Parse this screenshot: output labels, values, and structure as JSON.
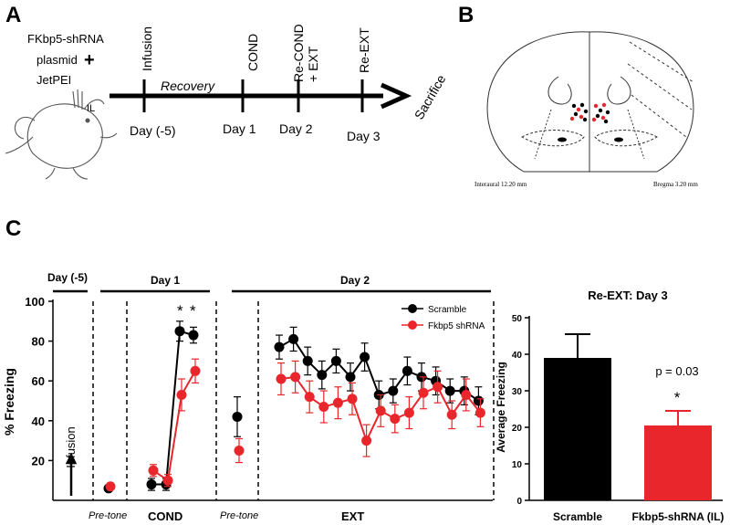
{
  "panels": {
    "A": {
      "label": "A",
      "drug_lines": [
        "FKbp5-shRNA",
        "plasmid",
        "JetPEI"
      ],
      "plus": "+",
      "il_label": "IL",
      "stages": [
        "Infusion",
        "Recovery",
        "COND",
        "Re-COND",
        "+ EXT",
        "Re-EXT"
      ],
      "days": [
        "Day (-5)",
        "Day 1",
        "Day 2",
        "Day 3"
      ],
      "end_label": "Sacrifice"
    },
    "B": {
      "label": "B",
      "coord_left": "Interaural 12.20 mm",
      "coord_right": "Bregma 3.20 mm"
    },
    "C": {
      "label": "C"
    }
  },
  "colors": {
    "scramble": "#000000",
    "fkbp5": "#e8262b"
  },
  "chart_data": [
    {
      "type": "line",
      "ylabel": "% Freezing",
      "ylim": [
        0,
        100
      ],
      "yticks": [
        20,
        40,
        60,
        80,
        100
      ],
      "legend_position": "top-right",
      "section_labels": [
        "Day (-5)",
        "Day 1",
        "Day 2"
      ],
      "phase_labels": [
        "Pre-tone",
        "COND",
        "Pre-tone",
        "EXT"
      ],
      "infusion_label": "Infusion",
      "significance_marks": [
        "*",
        "*"
      ],
      "series": [
        {
          "name": "Scramble",
          "color_key": "scramble",
          "pretone_day1": 6,
          "pretone_day1_err": 1,
          "cond": [
            8,
            8,
            85,
            83
          ],
          "cond_err": [
            3,
            3,
            5,
            4
          ],
          "pretone_day2": 42,
          "pretone_day2_err": 10,
          "ext": [
            77,
            81,
            70,
            63,
            70,
            62,
            72,
            53,
            55,
            65,
            62,
            60,
            55,
            55,
            50
          ],
          "ext_err": [
            6,
            6,
            7,
            7,
            6,
            7,
            7,
            7,
            6,
            7,
            7,
            7,
            6,
            7,
            7
          ]
        },
        {
          "name": "Fkbp5 shRNA",
          "color_key": "fkbp5",
          "pretone_day1": 7,
          "pretone_day1_err": 1,
          "cond": [
            15,
            10,
            53,
            65
          ],
          "cond_err": [
            3,
            3,
            8,
            6
          ],
          "pretone_day2": 25,
          "pretone_day2_err": 6,
          "ext": [
            61,
            62,
            52,
            47,
            49,
            51,
            30,
            45,
            41,
            44,
            54,
            57,
            43,
            53,
            44
          ],
          "ext_err": [
            8,
            8,
            8,
            8,
            8,
            8,
            8,
            8,
            7,
            8,
            8,
            8,
            7,
            8,
            7
          ]
        }
      ]
    },
    {
      "type": "bar",
      "title": "Re-EXT: Day 3",
      "ylabel": "Average Freezing",
      "ylim": [
        0,
        50
      ],
      "yticks": [
        0,
        10,
        20,
        30,
        40,
        50
      ],
      "categories": [
        "Scramble",
        "Fkbp5-shRNA (IL)"
      ],
      "values": [
        39,
        20.5
      ],
      "errors": [
        6.5,
        4
      ],
      "bar_color_keys": [
        "scramble",
        "fkbp5"
      ],
      "annotation_p": "p = 0.03",
      "annotation_star": "*"
    }
  ]
}
